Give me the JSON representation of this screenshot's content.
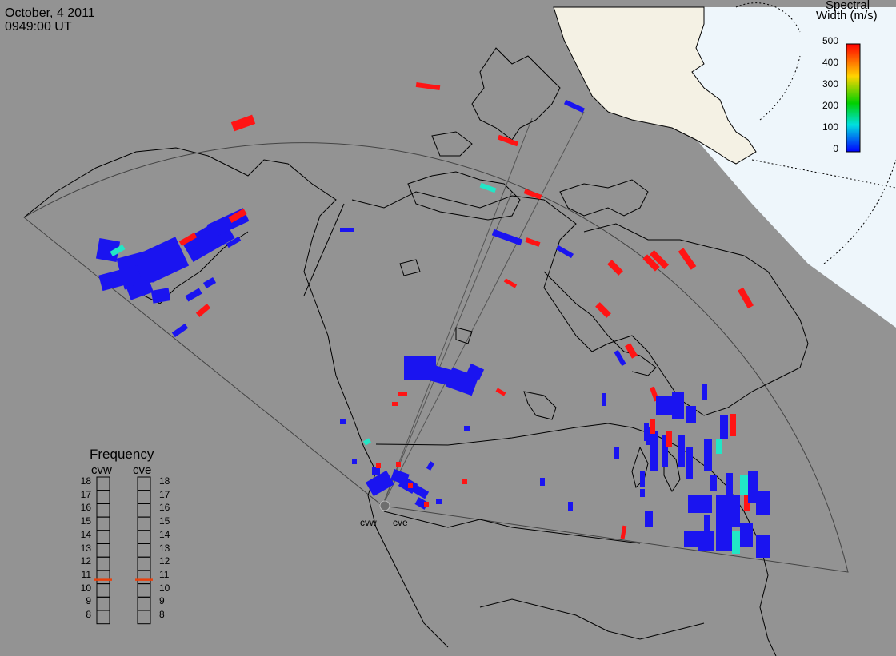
{
  "title": {
    "date": "October, 4 2011",
    "time": "0949:00 UT"
  },
  "colors": {
    "background": "#939393",
    "land_outline": "#000000",
    "polar_region": "#eef6fb",
    "polar_land": "#f4f1e4",
    "echo_low": "#1a14f0",
    "echo_mid": "#22e6c6",
    "echo_high": "#ff1414",
    "frequency_marker": "#e8400c"
  },
  "color_scale": {
    "title_line1": "Spectral",
    "title_line2": "Width (m/s)",
    "ticks": [
      "500",
      "400",
      "300",
      "200",
      "100",
      "0"
    ],
    "min": 0,
    "max": 500
  },
  "frequency_panel": {
    "title": "Frequency",
    "radars": [
      {
        "name": "cvw",
        "frequency_mhz": 10.8
      },
      {
        "name": "cve",
        "frequency_mhz": 10.8
      }
    ],
    "scale_labels": [
      "18",
      "17",
      "16",
      "15",
      "14",
      "13",
      "12",
      "11",
      "10",
      "9",
      "8"
    ]
  },
  "radar_sites": [
    {
      "name": "cvw"
    },
    {
      "name": "cve"
    }
  ]
}
